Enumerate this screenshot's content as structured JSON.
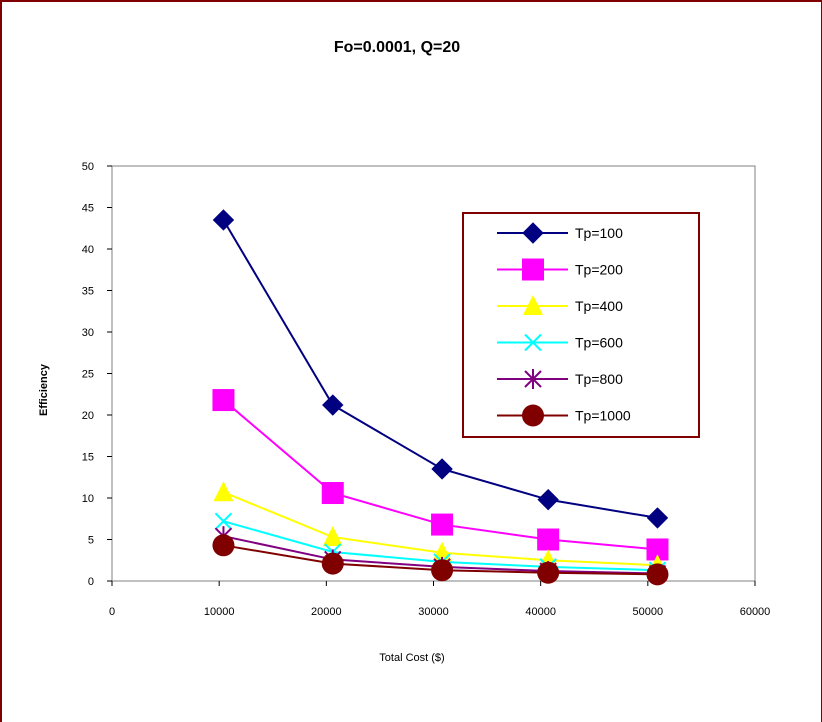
{
  "chart_data": {
    "type": "line",
    "title": "Fo=0.0001, Q=20",
    "xlabel": "Total Cost ($)",
    "ylabel": "Efficiency",
    "xlim": [
      0,
      60000
    ],
    "ylim": [
      0,
      50
    ],
    "xticks": [
      0,
      10000,
      20000,
      30000,
      40000,
      50000,
      60000
    ],
    "yticks": [
      0,
      5,
      10,
      15,
      20,
      25,
      30,
      35,
      40,
      45,
      50
    ],
    "grid": false,
    "legend_position": "top-right",
    "x": [
      10400,
      20600,
      30800,
      40700,
      50900
    ],
    "series": [
      {
        "name": "Tp=100",
        "color": "#000080",
        "marker": "diamond",
        "values": [
          43.5,
          21.2,
          13.5,
          9.8,
          7.6
        ]
      },
      {
        "name": "Tp=200",
        "color": "#ff00ff",
        "marker": "square",
        "values": [
          21.8,
          10.6,
          6.8,
          5.0,
          3.8
        ]
      },
      {
        "name": "Tp=400",
        "color": "#ffff00",
        "marker": "triangle",
        "values": [
          10.7,
          5.3,
          3.4,
          2.5,
          1.9
        ]
      },
      {
        "name": "Tp=600",
        "color": "#00ffff",
        "marker": "x",
        "values": [
          7.2,
          3.5,
          2.3,
          1.7,
          1.3
        ]
      },
      {
        "name": "Tp=800",
        "color": "#800080",
        "marker": "star",
        "values": [
          5.4,
          2.6,
          1.7,
          1.2,
          0.9
        ]
      },
      {
        "name": "Tp=1000",
        "color": "#800000",
        "marker": "circle",
        "values": [
          4.3,
          2.1,
          1.3,
          1.0,
          0.8
        ]
      }
    ]
  }
}
